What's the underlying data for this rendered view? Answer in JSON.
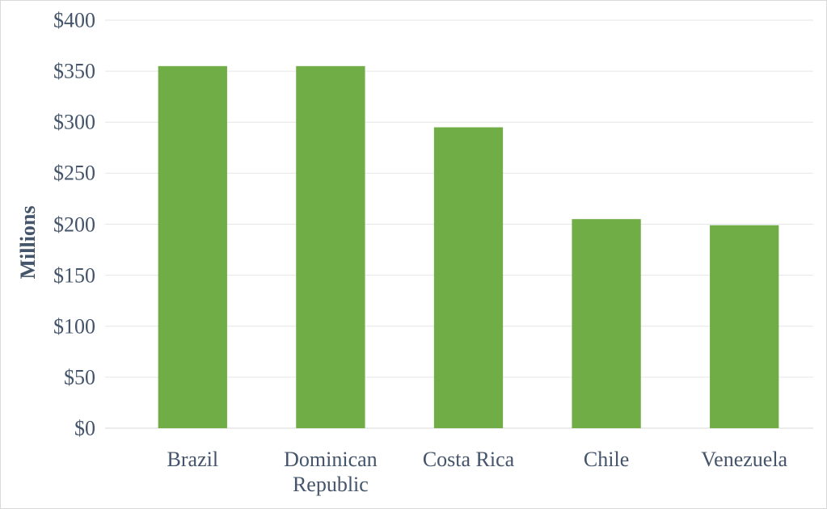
{
  "chart_data": {
    "type": "bar",
    "y_label": "Millions",
    "categories": [
      "Brazil",
      "Dominican Republic",
      "Costa Rica",
      "Chile",
      "Venezuela"
    ],
    "values": [
      355,
      355,
      295,
      205,
      199
    ],
    "color": "#70ad47",
    "ylim": [
      0,
      400
    ],
    "yticks": [
      {
        "value": 0,
        "label": "$0"
      },
      {
        "value": 50,
        "label": "$50"
      },
      {
        "value": 100,
        "label": "$100"
      },
      {
        "value": 150,
        "label": "$150"
      },
      {
        "value": 200,
        "label": "$200"
      },
      {
        "value": 250,
        "label": "$250"
      },
      {
        "value": 300,
        "label": "$300"
      },
      {
        "value": 350,
        "label": "$350"
      },
      {
        "value": 400,
        "label": "$400"
      }
    ],
    "grid": true
  }
}
